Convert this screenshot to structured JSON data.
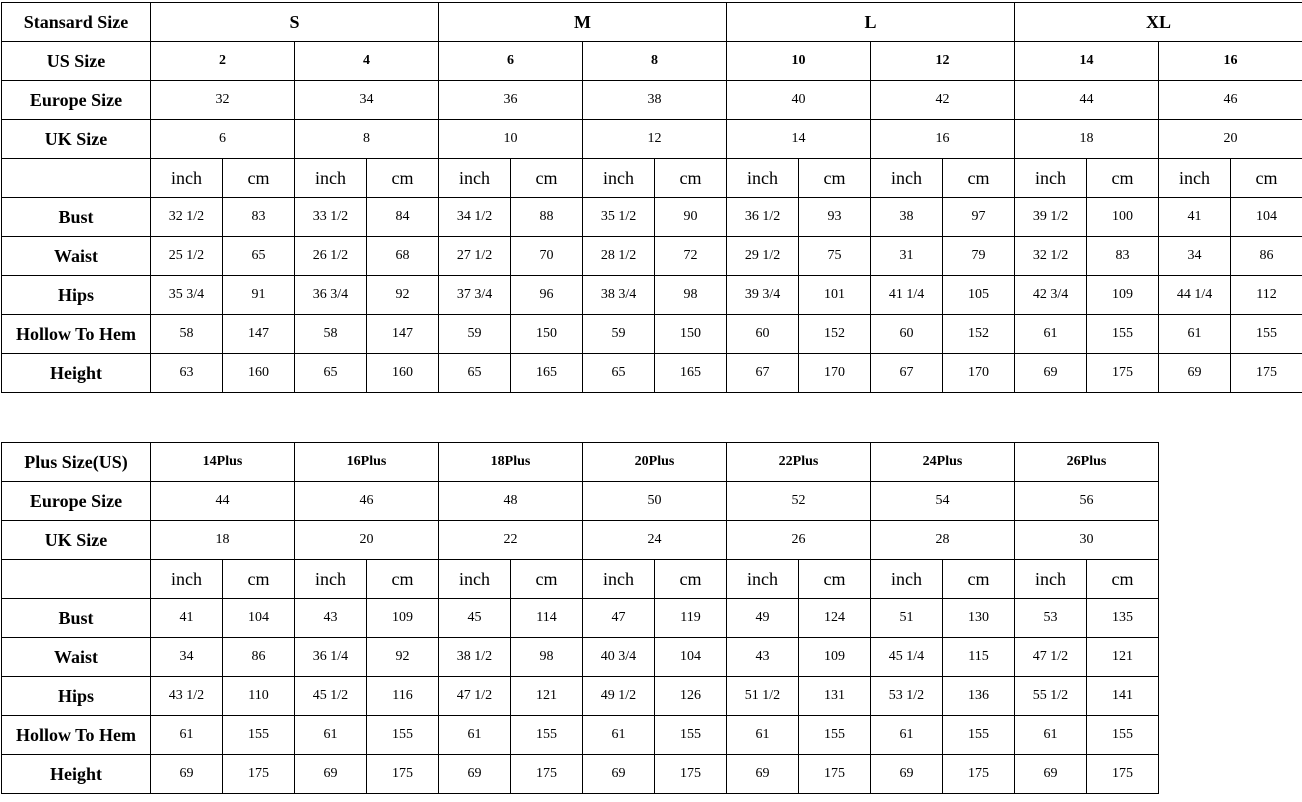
{
  "standard": {
    "corner": "Stansard Size",
    "groups": [
      "S",
      "M",
      "L",
      "XL"
    ],
    "us_label": "US Size",
    "us": [
      "2",
      "4",
      "6",
      "8",
      "10",
      "12",
      "14",
      "16"
    ],
    "europe_label": "Europe Size",
    "europe": [
      "32",
      "34",
      "36",
      "38",
      "40",
      "42",
      "44",
      "46"
    ],
    "uk_label": "UK Size",
    "uk": [
      "6",
      "8",
      "10",
      "12",
      "14",
      "16",
      "18",
      "20"
    ],
    "units": [
      "inch",
      "cm"
    ],
    "measurements": [
      {
        "label": "Bust",
        "values": [
          "32 1/2",
          "83",
          "33 1/2",
          "84",
          "34 1/2",
          "88",
          "35 1/2",
          "90",
          "36 1/2",
          "93",
          "38",
          "97",
          "39 1/2",
          "100",
          "41",
          "104"
        ]
      },
      {
        "label": "Waist",
        "values": [
          "25 1/2",
          "65",
          "26 1/2",
          "68",
          "27 1/2",
          "70",
          "28 1/2",
          "72",
          "29 1/2",
          "75",
          "31",
          "79",
          "32 1/2",
          "83",
          "34",
          "86"
        ]
      },
      {
        "label": "Hips",
        "values": [
          "35 3/4",
          "91",
          "36 3/4",
          "92",
          "37 3/4",
          "96",
          "38 3/4",
          "98",
          "39 3/4",
          "101",
          "41 1/4",
          "105",
          "42 3/4",
          "109",
          "44 1/4",
          "112"
        ]
      },
      {
        "label": "Hollow To Hem",
        "values": [
          "58",
          "147",
          "58",
          "147",
          "59",
          "150",
          "59",
          "150",
          "60",
          "152",
          "60",
          "152",
          "61",
          "155",
          "61",
          "155"
        ]
      },
      {
        "label": "Height",
        "values": [
          "63",
          "160",
          "65",
          "160",
          "65",
          "165",
          "65",
          "165",
          "67",
          "170",
          "67",
          "170",
          "69",
          "175",
          "69",
          "175"
        ]
      }
    ]
  },
  "plus": {
    "corner": "Plus Size(US)",
    "sizes": [
      "14Plus",
      "16Plus",
      "18Plus",
      "20Plus",
      "22Plus",
      "24Plus",
      "26Plus"
    ],
    "europe_label": "Europe Size",
    "europe": [
      "44",
      "46",
      "48",
      "50",
      "52",
      "54",
      "56"
    ],
    "uk_label": "UK Size",
    "uk": [
      "18",
      "20",
      "22",
      "24",
      "26",
      "28",
      "30"
    ],
    "units": [
      "inch",
      "cm"
    ],
    "measurements": [
      {
        "label": "Bust",
        "values": [
          "41",
          "104",
          "43",
          "109",
          "45",
          "114",
          "47",
          "119",
          "49",
          "124",
          "51",
          "130",
          "53",
          "135"
        ]
      },
      {
        "label": "Waist",
        "values": [
          "34",
          "86",
          "36 1/4",
          "92",
          "38 1/2",
          "98",
          "40 3/4",
          "104",
          "43",
          "109",
          "45 1/4",
          "115",
          "47 1/2",
          "121"
        ]
      },
      {
        "label": "Hips",
        "values": [
          "43 1/2",
          "110",
          "45 1/2",
          "116",
          "47 1/2",
          "121",
          "49 1/2",
          "126",
          "51 1/2",
          "131",
          "53 1/2",
          "136",
          "55 1/2",
          "141"
        ]
      },
      {
        "label": "Hollow To Hem",
        "values": [
          "61",
          "155",
          "61",
          "155",
          "61",
          "155",
          "61",
          "155",
          "61",
          "155",
          "61",
          "155",
          "61",
          "155"
        ]
      },
      {
        "label": "Height",
        "values": [
          "69",
          "175",
          "69",
          "175",
          "69",
          "175",
          "69",
          "175",
          "69",
          "175",
          "69",
          "175",
          "69",
          "175"
        ]
      }
    ]
  }
}
